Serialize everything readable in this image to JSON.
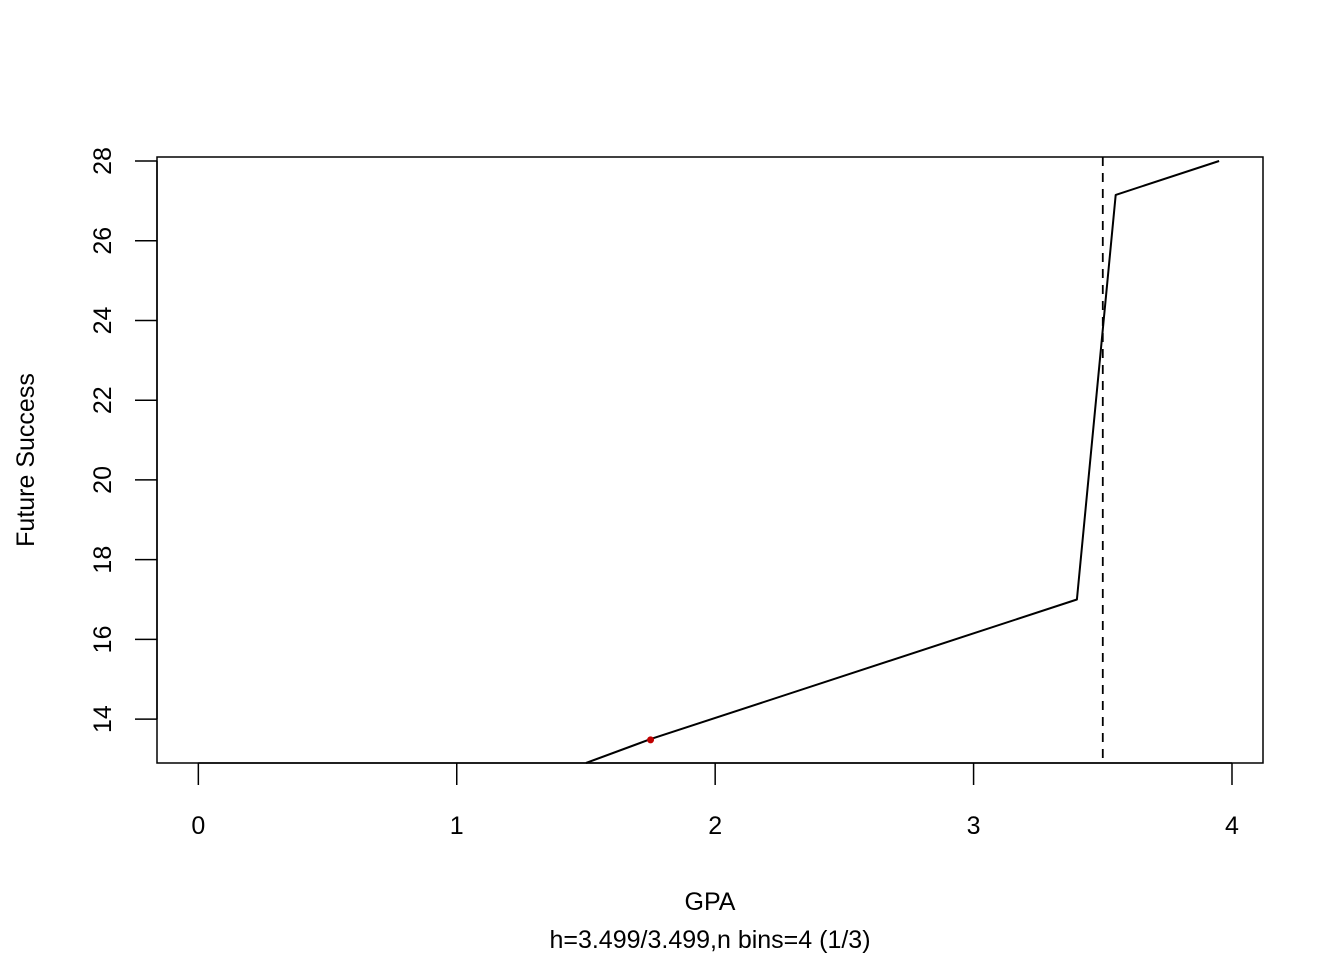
{
  "chart_data": {
    "type": "line",
    "title": "",
    "xlabel": "GPA",
    "xlabel_sub": "h=3.499/3.499,n bins=4 (1/3)",
    "ylabel": "Future Success",
    "xlim": [
      -0.16,
      4.12
    ],
    "ylim": [
      12.9,
      28.1
    ],
    "x_ticks": [
      0,
      1,
      2,
      3,
      4
    ],
    "y_ticks": [
      14,
      16,
      18,
      20,
      22,
      24,
      26,
      28
    ],
    "grid": false,
    "legend": "none",
    "series": [
      {
        "color": "#000000",
        "style": "solid",
        "points": [
          [
            1.5,
            12.9
          ],
          [
            1.75,
            13.5
          ],
          [
            3.4,
            17.0
          ],
          [
            3.55,
            27.15
          ],
          [
            3.95,
            28.0
          ]
        ]
      }
    ],
    "cutoff": {
      "x": 3.5,
      "style": "dashed",
      "color": "#000000"
    },
    "marker": {
      "x": 1.75,
      "y": 13.48,
      "color": "#c00000"
    }
  }
}
